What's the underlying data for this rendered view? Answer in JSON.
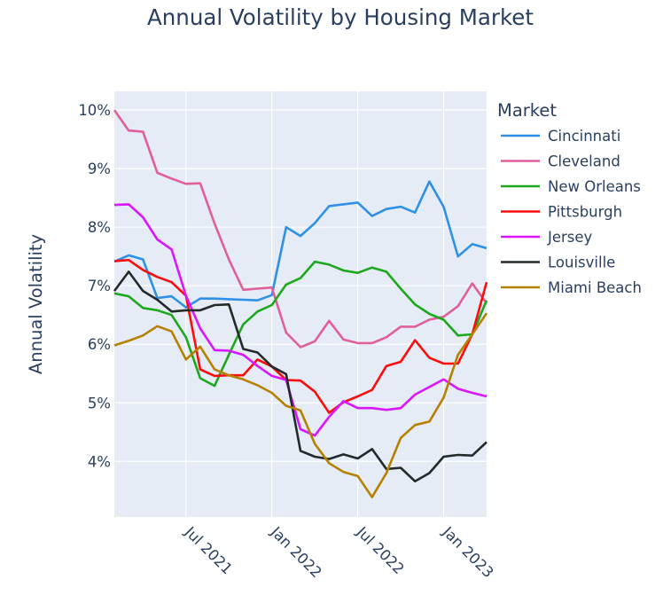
{
  "chart_data": {
    "type": "line",
    "title": "Annual Volatility by Housing Market",
    "xlabel": "",
    "ylabel": "Annual Volatility",
    "legend_title": "Market",
    "legend_position": "right",
    "grid": true,
    "x": [
      "2021-02",
      "2021-03",
      "2021-04",
      "2021-05",
      "2021-06",
      "2021-07",
      "2021-08",
      "2021-09",
      "2021-10",
      "2021-11",
      "2021-12",
      "2022-01",
      "2022-02",
      "2022-03",
      "2022-04",
      "2022-05",
      "2022-06",
      "2022-07",
      "2022-08",
      "2022-09",
      "2022-10",
      "2022-11",
      "2022-12",
      "2023-01",
      "2023-02",
      "2023-03",
      "2023-04"
    ],
    "x_ticks": [
      {
        "label": "Jul 2021",
        "at": "2021-07"
      },
      {
        "label": "Jan 2022",
        "at": "2022-01"
      },
      {
        "label": "Jul 2022",
        "at": "2022-07"
      },
      {
        "label": "Jan 2023",
        "at": "2023-01"
      }
    ],
    "y_ticks": [
      {
        "label": "4%",
        "value": 4
      },
      {
        "label": "5%",
        "value": 5
      },
      {
        "label": "6%",
        "value": 6
      },
      {
        "label": "7%",
        "value": 7
      },
      {
        "label": "8%",
        "value": 8
      },
      {
        "label": "9%",
        "value": 9
      },
      {
        "label": "10%",
        "value": 10
      }
    ],
    "ylim": [
      3.05,
      10.32
    ],
    "xlim": [
      "2021-02",
      "2023-04"
    ],
    "y_unit": "%",
    "series": [
      {
        "name": "Cincinnati",
        "color": "#2E91E5",
        "values": [
          7.41,
          7.52,
          7.45,
          6.79,
          6.82,
          6.63,
          6.78,
          6.78,
          6.77,
          6.76,
          6.75,
          6.84,
          8.0,
          7.85,
          8.07,
          8.36,
          8.39,
          8.42,
          8.19,
          8.31,
          8.35,
          8.25,
          8.78,
          8.35,
          7.5,
          7.71,
          7.64
        ]
      },
      {
        "name": "Cleveland",
        "color": "#E15F99",
        "values": [
          10.0,
          9.65,
          9.63,
          8.93,
          8.83,
          8.74,
          8.75,
          8.06,
          7.45,
          6.93,
          6.95,
          6.97,
          6.2,
          5.95,
          6.05,
          6.4,
          6.08,
          6.02,
          6.02,
          6.12,
          6.3,
          6.3,
          6.42,
          6.47,
          6.65,
          7.04,
          6.7
        ]
      },
      {
        "name": "New Orleans",
        "color": "#1CA71C",
        "values": [
          6.87,
          6.82,
          6.62,
          6.58,
          6.5,
          6.12,
          5.42,
          5.29,
          5.82,
          6.34,
          6.56,
          6.67,
          7.02,
          7.13,
          7.41,
          7.36,
          7.26,
          7.22,
          7.31,
          7.24,
          6.95,
          6.68,
          6.52,
          6.42,
          6.15,
          6.17,
          6.75
        ]
      },
      {
        "name": "Pittsburgh",
        "color": "#FB0D0D",
        "values": [
          7.42,
          7.44,
          7.27,
          7.15,
          7.06,
          6.83,
          5.57,
          5.46,
          5.47,
          5.47,
          5.74,
          5.62,
          5.39,
          5.38,
          5.19,
          4.83,
          5.01,
          5.11,
          5.22,
          5.63,
          5.7,
          6.07,
          5.77,
          5.67,
          5.67,
          6.17,
          7.06
        ]
      },
      {
        "name": "Jersey",
        "color": "#DA16FF",
        "values": [
          8.38,
          8.39,
          8.17,
          7.79,
          7.62,
          6.83,
          6.27,
          5.9,
          5.89,
          5.82,
          5.63,
          5.46,
          5.39,
          4.55,
          4.44,
          4.76,
          5.03,
          4.91,
          4.91,
          4.88,
          4.91,
          5.14,
          5.27,
          5.4,
          5.24,
          5.17,
          5.11
        ]
      },
      {
        "name": "Louisville",
        "color": "#222A2A",
        "values": [
          6.91,
          7.24,
          6.91,
          6.76,
          6.56,
          6.58,
          6.58,
          6.67,
          6.68,
          5.92,
          5.86,
          5.62,
          5.49,
          4.18,
          4.08,
          4.04,
          4.12,
          4.05,
          4.21,
          3.87,
          3.89,
          3.66,
          3.8,
          4.08,
          4.11,
          4.1,
          4.33
        ]
      },
      {
        "name": "Miami Beach",
        "color": "#B68100",
        "values": [
          5.98,
          6.06,
          6.15,
          6.31,
          6.22,
          5.74,
          5.96,
          5.57,
          5.47,
          5.4,
          5.3,
          5.17,
          4.95,
          4.87,
          4.3,
          3.97,
          3.82,
          3.75,
          3.39,
          3.8,
          4.4,
          4.62,
          4.68,
          5.09,
          5.82,
          6.17,
          6.53
        ]
      }
    ]
  },
  "colors": {
    "plot_background": "#E5ECF6",
    "grid": "#ffffff",
    "text": "#2a3f5f"
  }
}
